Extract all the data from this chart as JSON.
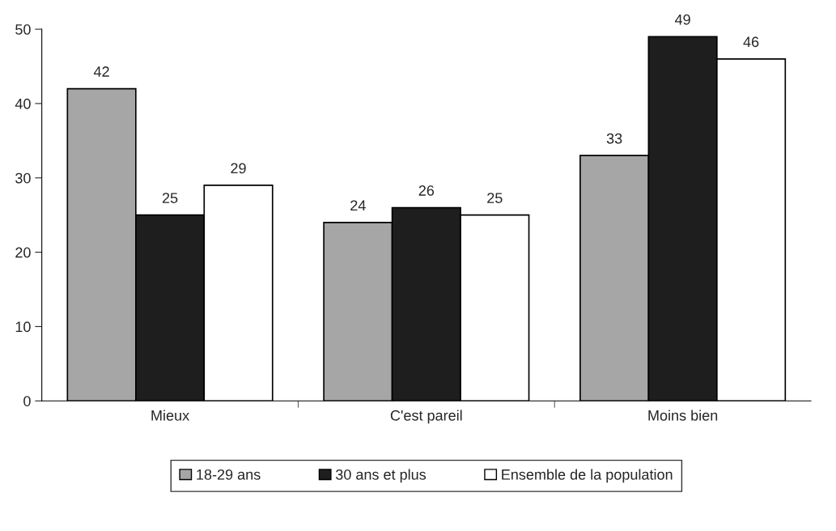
{
  "chart_data": {
    "type": "bar",
    "categories": [
      "Mieux",
      "C'est pareil",
      "Moins bien"
    ],
    "series": [
      {
        "name": "18-29 ans",
        "color": "#a6a6a6",
        "values": [
          42,
          24,
          33
        ]
      },
      {
        "name": "30 ans et plus",
        "color": "#1e1e1e",
        "values": [
          25,
          26,
          49
        ]
      },
      {
        "name": "Ensemble de la population",
        "color": "#ffffff",
        "values": [
          29,
          25,
          46
        ]
      }
    ],
    "ylim": [
      0,
      50
    ],
    "yticks": [
      0,
      10,
      20,
      30,
      40,
      50
    ],
    "data_labels": true,
    "legend": "bottom",
    "grid": false
  }
}
